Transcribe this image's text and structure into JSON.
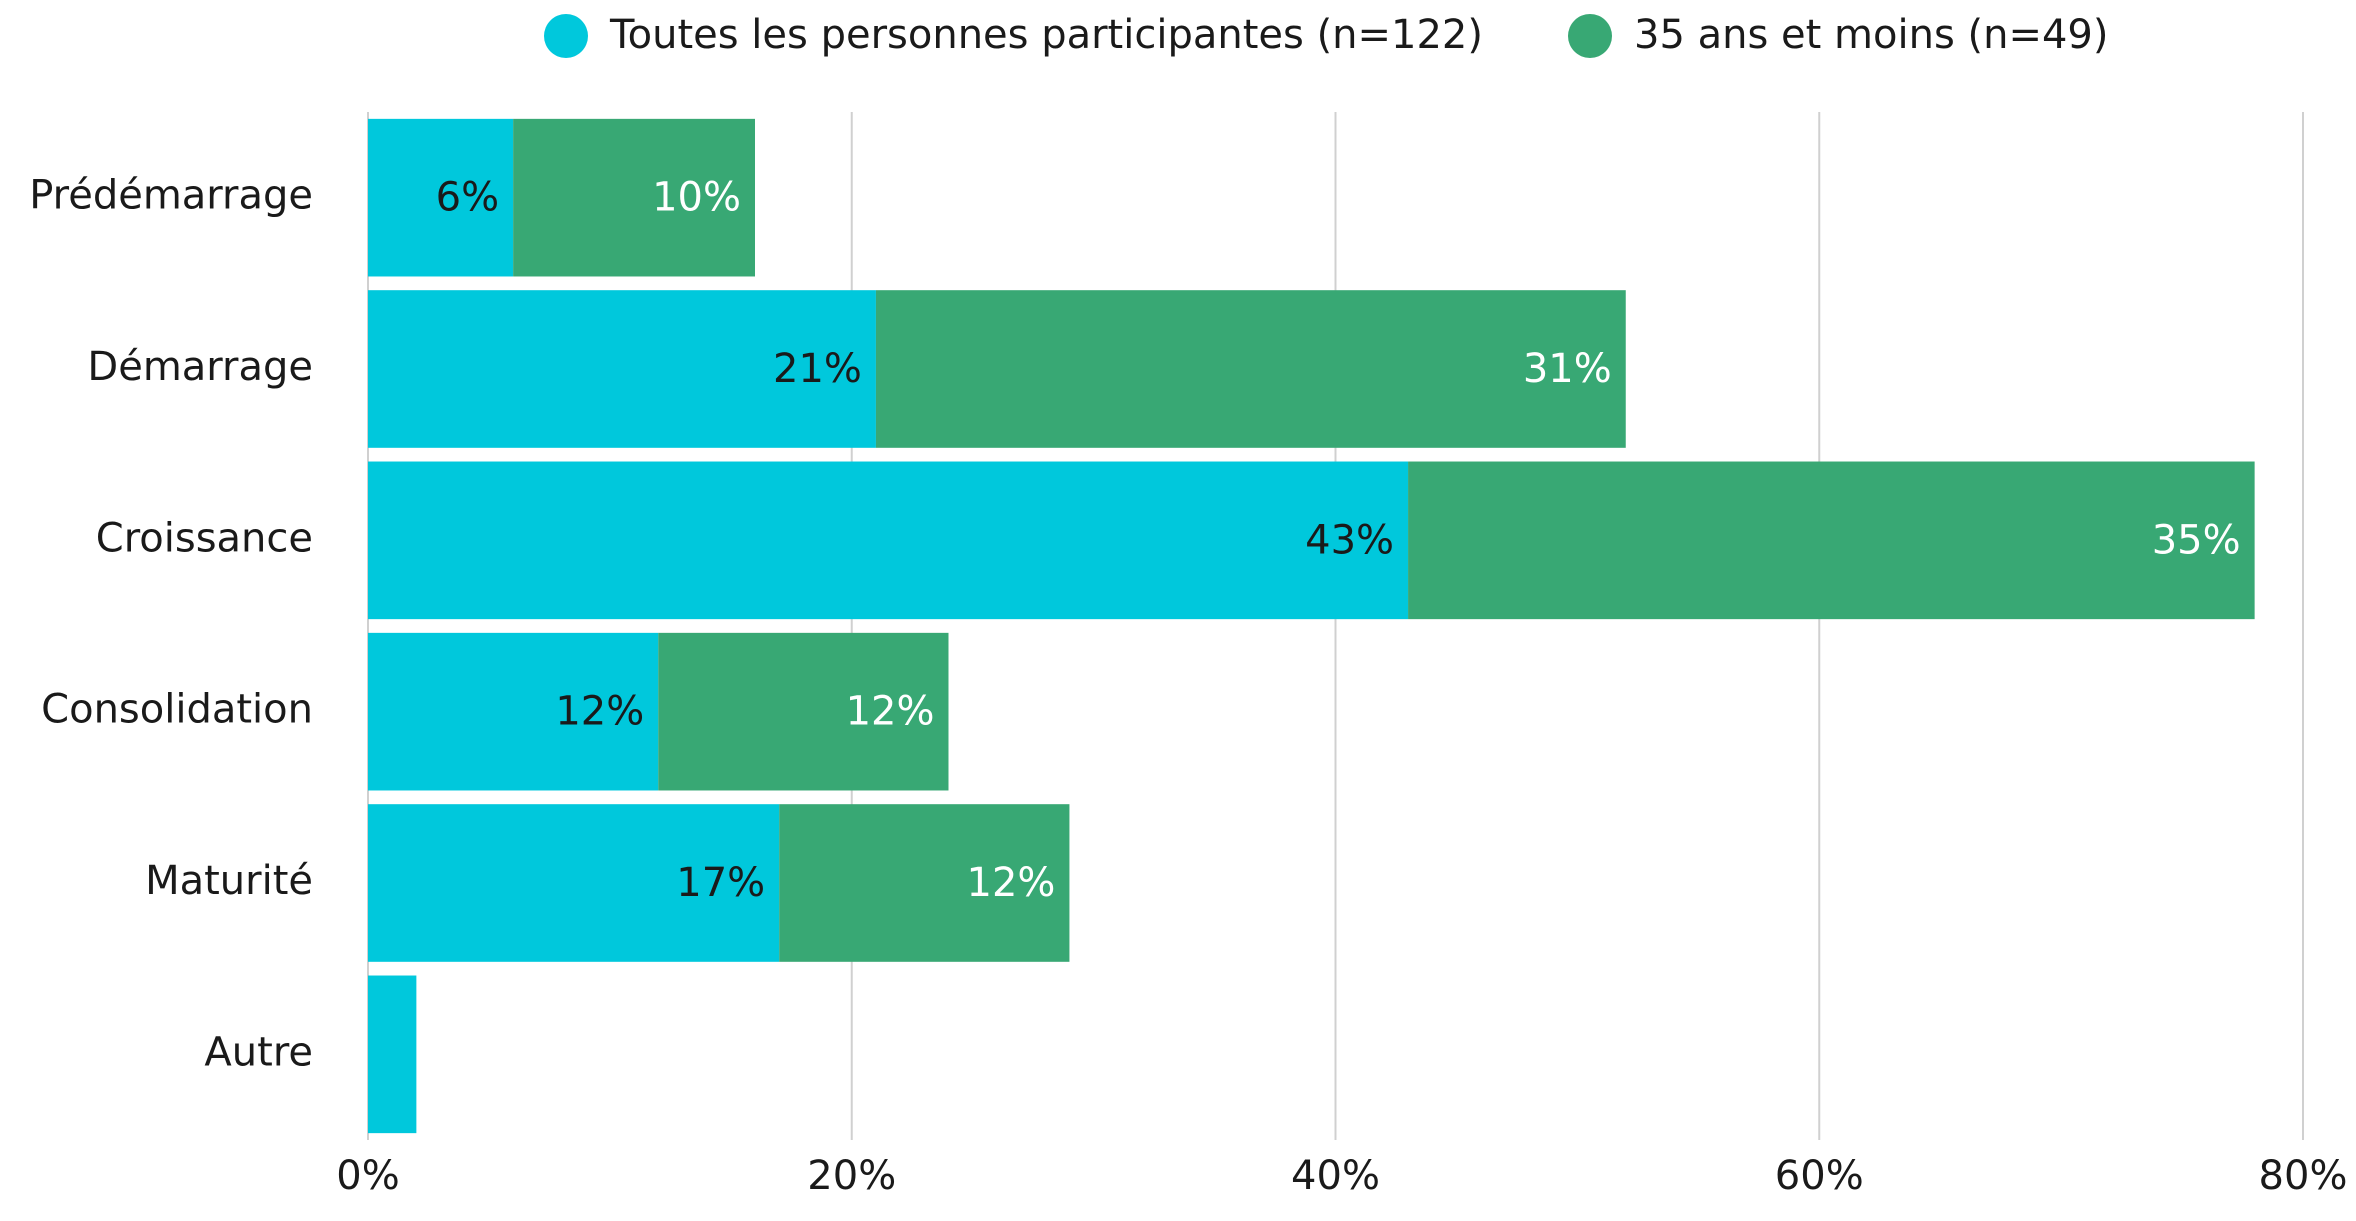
{
  "chart_data": {
    "type": "stacked-bar-horizontal",
    "categories": [
      "Prédémarrage",
      "Démarrage",
      "Croissance",
      "Consolidation",
      "Maturité",
      "Autre"
    ],
    "series": [
      {
        "name": "Toutes les personnes participantes (n=122)",
        "color": "#00c8dc",
        "values": [
          6,
          21,
          43,
          12,
          17,
          2
        ],
        "value_labels": [
          "6%",
          "21%",
          "43%",
          "12%",
          "17%",
          null
        ]
      },
      {
        "name": "35 ans et moins (n=49)",
        "color": "#38a874",
        "values": [
          10,
          31,
          35,
          12,
          12,
          null
        ],
        "value_labels": [
          "10%",
          "31%",
          "35%",
          "12%",
          "12%",
          null
        ]
      }
    ],
    "xlim": [
      0,
      80
    ],
    "xticks": [
      {
        "value": 0,
        "label": "0%"
      },
      {
        "value": 20,
        "label": "20%"
      },
      {
        "value": 40,
        "label": "40%"
      },
      {
        "value": 60,
        "label": "60%"
      },
      {
        "value": 80,
        "label": "80%"
      }
    ],
    "grid": true,
    "legend": "top"
  }
}
